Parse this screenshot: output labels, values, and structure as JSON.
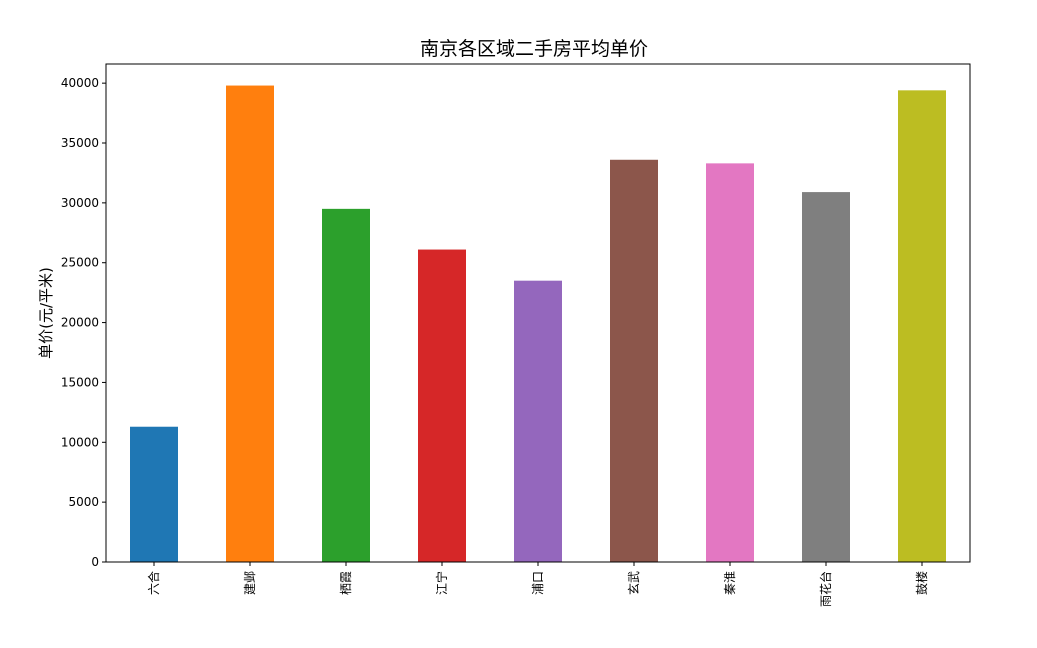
{
  "chart_data": {
    "type": "bar",
    "title": "南京各区域二手房平均单价",
    "xlabel": "",
    "ylabel": "单价(元/平米)",
    "categories": [
      "六合",
      "建邺",
      "栖霞",
      "江宁",
      "浦口",
      "玄武",
      "秦淮",
      "雨花台",
      "鼓楼"
    ],
    "values": [
      11300,
      39800,
      29500,
      26100,
      23500,
      33600,
      33300,
      30900,
      39400
    ],
    "colors": [
      "#1f77b4",
      "#ff7f0e",
      "#2ca02c",
      "#d62728",
      "#9467bd",
      "#8c564b",
      "#e377c2",
      "#7f7f7f",
      "#bcbd22"
    ],
    "ylim": [
      0,
      41600
    ],
    "yticks": [
      0,
      5000,
      10000,
      15000,
      20000,
      25000,
      30000,
      35000,
      40000
    ],
    "grid": false,
    "legend": "none"
  }
}
